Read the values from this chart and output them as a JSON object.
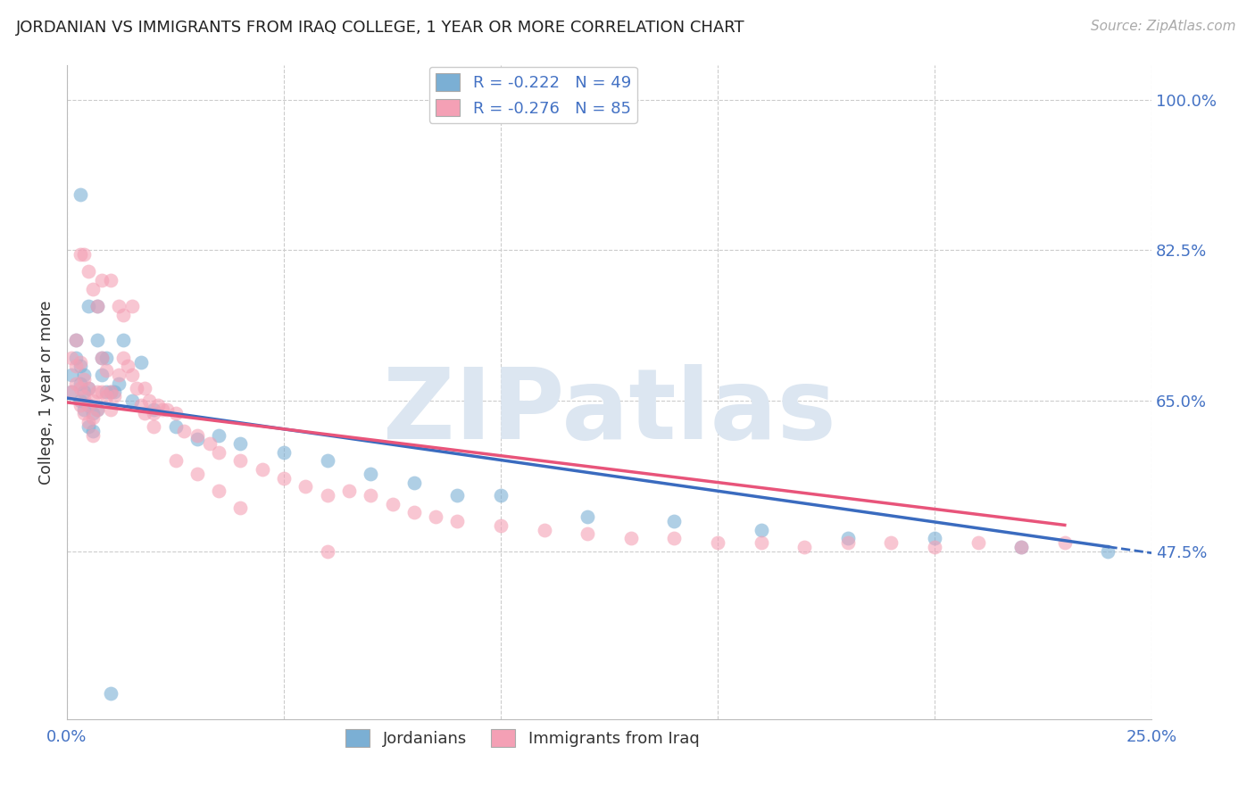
{
  "title": "JORDANIAN VS IMMIGRANTS FROM IRAQ COLLEGE, 1 YEAR OR MORE CORRELATION CHART",
  "source": "Source: ZipAtlas.com",
  "ylabel": "College, 1 year or more",
  "xlim": [
    0.0,
    0.25
  ],
  "ylim": [
    0.28,
    1.04
  ],
  "xtick_positions": [
    0.0,
    0.05,
    0.1,
    0.15,
    0.2,
    0.25
  ],
  "xticklabels": [
    "0.0%",
    "",
    "",
    "",
    "",
    "25.0%"
  ],
  "yticks_right": [
    0.475,
    0.65,
    0.825,
    1.0
  ],
  "ytick_labels_right": [
    "47.5%",
    "65.0%",
    "82.5%",
    "100.0%"
  ],
  "legend_r1": "R = -0.222   N = 49",
  "legend_r2": "R = -0.276   N = 85",
  "blue_color": "#7bafd4",
  "pink_color": "#f4a0b5",
  "blue_line_color": "#3a6bbf",
  "pink_line_color": "#e8547a",
  "label_color": "#4472c4",
  "watermark": "ZIPatlas",
  "watermark_color": "#dce6f1",
  "background_color": "#ffffff",
  "grid_color": "#cccccc",
  "blue_line_intercept": 0.653,
  "blue_line_slope": -0.72,
  "pink_line_intercept": 0.648,
  "pink_line_slope": -0.62,
  "jordanians_x": [
    0.001,
    0.001,
    0.002,
    0.002,
    0.003,
    0.003,
    0.003,
    0.004,
    0.004,
    0.004,
    0.005,
    0.005,
    0.005,
    0.006,
    0.006,
    0.007,
    0.007,
    0.008,
    0.008,
    0.009,
    0.009,
    0.01,
    0.011,
    0.012,
    0.013,
    0.015,
    0.017,
    0.02,
    0.025,
    0.03,
    0.035,
    0.04,
    0.05,
    0.06,
    0.07,
    0.08,
    0.09,
    0.1,
    0.12,
    0.14,
    0.16,
    0.18,
    0.2,
    0.22,
    0.24,
    0.003,
    0.005,
    0.007,
    0.01
  ],
  "jordanians_y": [
    0.66,
    0.68,
    0.7,
    0.72,
    0.65,
    0.67,
    0.69,
    0.64,
    0.66,
    0.68,
    0.62,
    0.645,
    0.665,
    0.615,
    0.635,
    0.64,
    0.72,
    0.68,
    0.7,
    0.66,
    0.7,
    0.66,
    0.66,
    0.67,
    0.72,
    0.65,
    0.695,
    0.64,
    0.62,
    0.605,
    0.61,
    0.6,
    0.59,
    0.58,
    0.565,
    0.555,
    0.54,
    0.54,
    0.515,
    0.51,
    0.5,
    0.49,
    0.49,
    0.48,
    0.475,
    0.89,
    0.76,
    0.76,
    0.31
  ],
  "iraq_x": [
    0.001,
    0.001,
    0.002,
    0.002,
    0.002,
    0.003,
    0.003,
    0.003,
    0.004,
    0.004,
    0.004,
    0.005,
    0.005,
    0.005,
    0.006,
    0.006,
    0.006,
    0.007,
    0.007,
    0.008,
    0.008,
    0.009,
    0.009,
    0.01,
    0.01,
    0.011,
    0.012,
    0.013,
    0.013,
    0.014,
    0.015,
    0.016,
    0.017,
    0.018,
    0.019,
    0.02,
    0.021,
    0.022,
    0.023,
    0.025,
    0.027,
    0.03,
    0.033,
    0.035,
    0.04,
    0.045,
    0.05,
    0.055,
    0.06,
    0.065,
    0.07,
    0.075,
    0.08,
    0.085,
    0.09,
    0.1,
    0.11,
    0.12,
    0.13,
    0.14,
    0.15,
    0.16,
    0.17,
    0.18,
    0.19,
    0.2,
    0.21,
    0.22,
    0.23,
    0.003,
    0.004,
    0.005,
    0.006,
    0.007,
    0.008,
    0.01,
    0.012,
    0.015,
    0.018,
    0.02,
    0.025,
    0.03,
    0.035,
    0.04,
    0.06
  ],
  "iraq_y": [
    0.66,
    0.7,
    0.67,
    0.69,
    0.72,
    0.645,
    0.665,
    0.695,
    0.635,
    0.655,
    0.675,
    0.625,
    0.645,
    0.665,
    0.61,
    0.63,
    0.65,
    0.64,
    0.66,
    0.66,
    0.7,
    0.655,
    0.685,
    0.64,
    0.66,
    0.655,
    0.68,
    0.7,
    0.75,
    0.69,
    0.68,
    0.665,
    0.645,
    0.665,
    0.65,
    0.635,
    0.645,
    0.64,
    0.64,
    0.635,
    0.615,
    0.61,
    0.6,
    0.59,
    0.58,
    0.57,
    0.56,
    0.55,
    0.54,
    0.545,
    0.54,
    0.53,
    0.52,
    0.515,
    0.51,
    0.505,
    0.5,
    0.495,
    0.49,
    0.49,
    0.485,
    0.485,
    0.48,
    0.485,
    0.485,
    0.48,
    0.485,
    0.48,
    0.485,
    0.82,
    0.82,
    0.8,
    0.78,
    0.76,
    0.79,
    0.79,
    0.76,
    0.76,
    0.635,
    0.62,
    0.58,
    0.565,
    0.545,
    0.525,
    0.475
  ]
}
